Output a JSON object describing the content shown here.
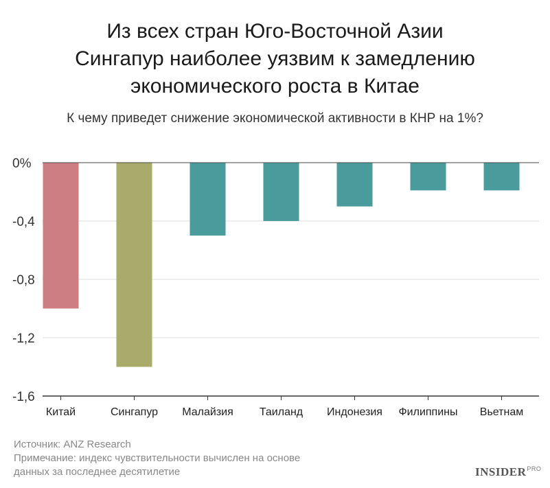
{
  "header": {
    "title_lines": [
      "Из всех стран Юго-Восточной Азии",
      "Сингапур наиболее уязвим к замедлению",
      "экономического роста в Китае"
    ],
    "subtitle": "К чему приведет снижение экономической активности в КНР на 1%?"
  },
  "chart_data": {
    "type": "bar",
    "title": "Из всех стран Юго-Восточной Азии Сингапур наиболее уязвим к замедлению экономического роста в Китае",
    "subtitle": "К чему приведет снижение экономической активности в КНР на 1%?",
    "categories": [
      "Китай",
      "Сингапур",
      "Малайзия",
      "Таиланд",
      "Индонезия",
      "Филиппины",
      "Вьетнам"
    ],
    "values": [
      -1.0,
      -1.4,
      -0.5,
      -0.4,
      -0.3,
      -0.19,
      -0.19
    ],
    "colors": [
      "#cd7e83",
      "#a8ab6a",
      "#4a9b9c",
      "#4a9b9c",
      "#4a9b9c",
      "#4a9b9c",
      "#4a9b9c"
    ],
    "ylim": [
      -1.6,
      0
    ],
    "yticks": [
      0,
      -0.4,
      -0.8,
      -1.2,
      -1.6
    ],
    "ytick_labels": [
      "0%",
      "-0,4",
      "-0,8",
      "-1,2",
      "-1,6"
    ],
    "xlabel": "",
    "ylabel": "",
    "grid": true,
    "gridline_color": "#dddddd",
    "axis_color": "#333333"
  },
  "footer": {
    "source": "Источник: ANZ Research",
    "note_line1": "Примечание: индекс чувствительности вычислен на основе",
    "note_line2": "данных за последнее десятилетие"
  },
  "brand": {
    "name": "INSIDER",
    "suffix": "PRO"
  }
}
